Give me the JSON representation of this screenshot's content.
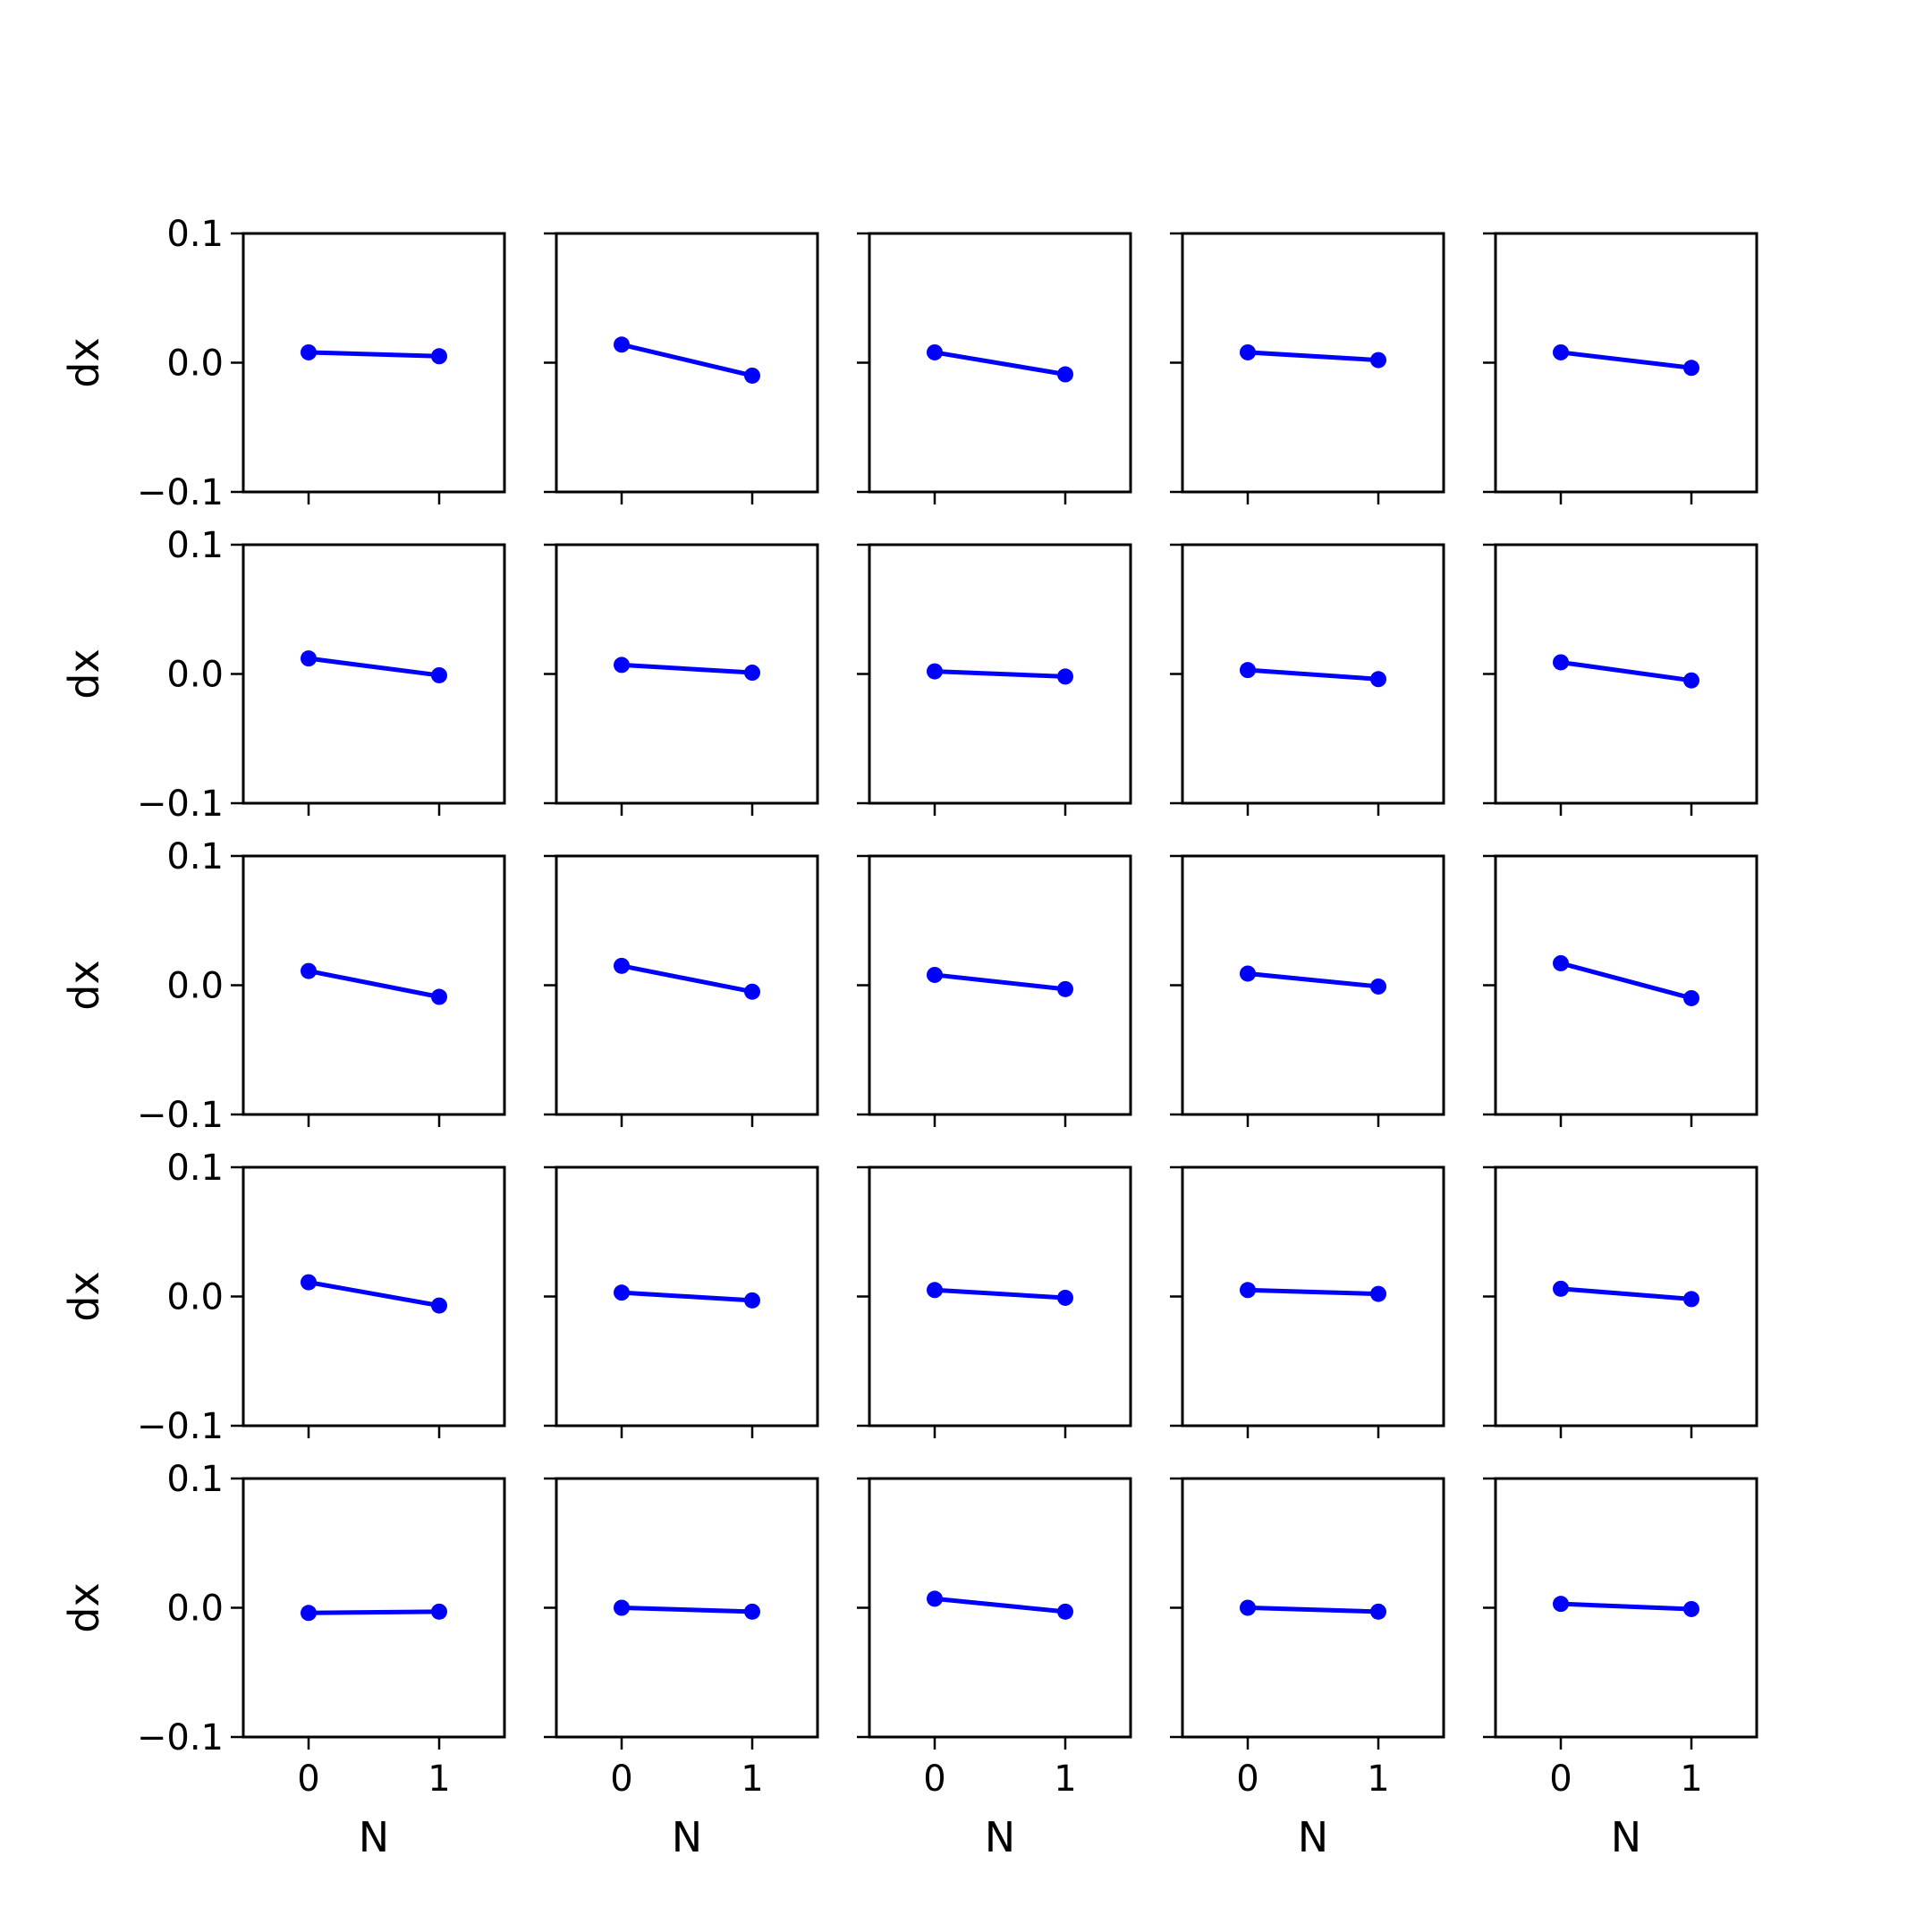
{
  "chart_data": {
    "type": "line",
    "layout": "5x5 grid of small-multiple line plots",
    "xlabel": "N",
    "ylabel": "dx",
    "x": [
      0,
      1
    ],
    "xticks": [
      0,
      1
    ],
    "xtick_labels": [
      "0",
      "1"
    ],
    "xlim": [
      -0.5,
      1.5
    ],
    "ylim": [
      -0.1,
      0.1
    ],
    "yticks": [
      -0.1,
      0.0,
      0.1
    ],
    "ytick_labels": [
      "−0.1",
      "0.0",
      "0.1"
    ],
    "sharex": true,
    "sharey": true,
    "grid": false,
    "line_color": "#0000ff",
    "marker": "circle",
    "panels": [
      [
        {
          "y": [
            0.008,
            0.005
          ]
        },
        {
          "y": [
            0.014,
            -0.01
          ]
        },
        {
          "y": [
            0.008,
            -0.009
          ]
        },
        {
          "y": [
            0.008,
            0.002
          ]
        },
        {
          "y": [
            0.008,
            -0.004
          ]
        }
      ],
      [
        {
          "y": [
            0.012,
            -0.001
          ]
        },
        {
          "y": [
            0.007,
            0.001
          ]
        },
        {
          "y": [
            0.002,
            -0.002
          ]
        },
        {
          "y": [
            0.003,
            -0.004
          ]
        },
        {
          "y": [
            0.009,
            -0.005
          ]
        }
      ],
      [
        {
          "y": [
            0.011,
            -0.009
          ]
        },
        {
          "y": [
            0.015,
            -0.005
          ]
        },
        {
          "y": [
            0.008,
            -0.003
          ]
        },
        {
          "y": [
            0.009,
            -0.001
          ]
        },
        {
          "y": [
            0.017,
            -0.01
          ]
        }
      ],
      [
        {
          "y": [
            0.011,
            -0.007
          ]
        },
        {
          "y": [
            0.003,
            -0.003
          ]
        },
        {
          "y": [
            0.005,
            -0.001
          ]
        },
        {
          "y": [
            0.005,
            0.002
          ]
        },
        {
          "y": [
            0.006,
            -0.002
          ]
        }
      ],
      [
        {
          "y": [
            -0.004,
            -0.003
          ]
        },
        {
          "y": [
            0.0,
            -0.003
          ]
        },
        {
          "y": [
            0.007,
            -0.003
          ]
        },
        {
          "y": [
            0.0,
            -0.003
          ]
        },
        {
          "y": [
            0.003,
            -0.001
          ]
        }
      ]
    ]
  }
}
